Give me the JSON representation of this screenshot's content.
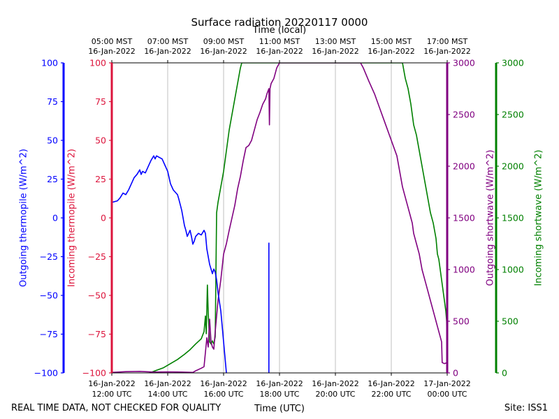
{
  "chart_data": {
    "type": "line",
    "title": "Surface radiation 20220117 0000",
    "top_axis_label": "Time (local)",
    "xlabel": "Time (UTC)",
    "footer_left": "REAL TIME DATA, NOT CHECKED FOR QUALITY",
    "footer_right": "Site: ISS1",
    "x_range_utc_hours": [
      12,
      24
    ],
    "top_ticks": [
      {
        "h": 12,
        "l1": "05:00 MST",
        "l2": "16-Jan-2022"
      },
      {
        "h": 14,
        "l1": "07:00 MST",
        "l2": "16-Jan-2022"
      },
      {
        "h": 16,
        "l1": "09:00 MST",
        "l2": "16-Jan-2022"
      },
      {
        "h": 18,
        "l1": "11:00 MST",
        "l2": "16-Jan-2022"
      },
      {
        "h": 20,
        "l1": "13:00 MST",
        "l2": "16-Jan-2022"
      },
      {
        "h": 22,
        "l1": "15:00 MST",
        "l2": "16-Jan-2022"
      },
      {
        "h": 24,
        "l1": "17:00 MST",
        "l2": "16-Jan-2022"
      }
    ],
    "bottom_ticks": [
      {
        "h": 12,
        "l1": "16-Jan-2022",
        "l2": "12:00 UTC"
      },
      {
        "h": 14,
        "l1": "16-Jan-2022",
        "l2": "14:00 UTC"
      },
      {
        "h": 16,
        "l1": "16-Jan-2022",
        "l2": "16:00 UTC"
      },
      {
        "h": 18,
        "l1": "16-Jan-2022",
        "l2": "18:00 UTC"
      },
      {
        "h": 20,
        "l1": "16-Jan-2022",
        "l2": "20:00 UTC"
      },
      {
        "h": 22,
        "l1": "16-Jan-2022",
        "l2": "22:00 UTC"
      },
      {
        "h": 24,
        "l1": "17-Jan-2022",
        "l2": "00:00 UTC"
      }
    ],
    "axes": [
      {
        "id": "out_thermo",
        "label": "Outgoing thermopile (W/m^2)",
        "color": "#0000ff",
        "range": [
          -100,
          100
        ],
        "ticks": [
          -100,
          -75,
          -50,
          -25,
          0,
          25,
          50,
          75,
          100
        ]
      },
      {
        "id": "in_thermo",
        "label": "Incoming thermopile (W/m^2)",
        "color": "#dc143c",
        "range": [
          -100,
          100
        ],
        "ticks": [
          -100,
          -75,
          -50,
          -25,
          0,
          25,
          50,
          75,
          100
        ]
      },
      {
        "id": "out_sw",
        "label": "Outgoing shortwave (W/m^2)",
        "color": "#800080",
        "range": [
          0,
          3000
        ],
        "ticks": [
          0,
          500,
          1000,
          1500,
          2000,
          2500,
          3000
        ]
      },
      {
        "id": "in_sw",
        "label": "Incoming shortwave (W/m^2)",
        "color": "#008000",
        "range": [
          0,
          3000
        ],
        "ticks": [
          0,
          500,
          1000,
          1500,
          2000,
          2500,
          3000
        ]
      }
    ],
    "series": [
      {
        "id": "incoming-shortwave",
        "axis": "in_sw",
        "color": "#008000",
        "points": [
          [
            13.35,
            0
          ],
          [
            13.6,
            25
          ],
          [
            13.85,
            50
          ],
          [
            14.1,
            90
          ],
          [
            14.35,
            130
          ],
          [
            14.6,
            180
          ],
          [
            14.8,
            225
          ],
          [
            15.0,
            280
          ],
          [
            15.2,
            330
          ],
          [
            15.3,
            400
          ],
          [
            15.35,
            550
          ],
          [
            15.38,
            380
          ],
          [
            15.42,
            850
          ],
          [
            15.45,
            580
          ],
          [
            15.5,
            300
          ],
          [
            15.55,
            280
          ],
          [
            15.6,
            310
          ],
          [
            15.65,
            280
          ],
          [
            15.7,
            350
          ],
          [
            15.75,
            1550
          ],
          [
            15.8,
            1650
          ],
          [
            15.9,
            1800
          ],
          [
            16.0,
            1950
          ],
          [
            16.1,
            2150
          ],
          [
            16.2,
            2350
          ],
          [
            16.3,
            2500
          ],
          [
            16.4,
            2650
          ],
          [
            16.5,
            2800
          ],
          [
            16.6,
            2950
          ],
          [
            16.65,
            3000
          ],
          [
            16.7,
            3000
          ],
          [
            22.4,
            3000
          ],
          [
            22.5,
            2850
          ],
          [
            22.6,
            2750
          ],
          [
            22.7,
            2600
          ],
          [
            22.75,
            2500
          ],
          [
            22.8,
            2400
          ],
          [
            22.9,
            2300
          ],
          [
            23.0,
            2150
          ],
          [
            23.1,
            2000
          ],
          [
            23.2,
            1850
          ],
          [
            23.3,
            1700
          ],
          [
            23.4,
            1550
          ],
          [
            23.5,
            1450
          ],
          [
            23.6,
            1300
          ],
          [
            23.65,
            1150
          ],
          [
            23.7,
            1100
          ],
          [
            23.75,
            1000
          ],
          [
            23.8,
            900
          ],
          [
            23.85,
            800
          ],
          [
            23.9,
            700
          ],
          [
            23.95,
            600
          ],
          [
            23.98,
            500
          ],
          [
            24.0,
            0
          ]
        ]
      },
      {
        "id": "outgoing-shortwave",
        "axis": "out_sw",
        "color": "#800080",
        "points": [
          [
            12.0,
            5
          ],
          [
            12.5,
            12
          ],
          [
            13.0,
            15
          ],
          [
            13.5,
            8
          ],
          [
            14.0,
            10
          ],
          [
            14.5,
            8
          ],
          [
            14.9,
            5
          ],
          [
            15.0,
            20
          ],
          [
            15.2,
            45
          ],
          [
            15.3,
            60
          ],
          [
            15.35,
            200
          ],
          [
            15.4,
            340
          ],
          [
            15.45,
            250
          ],
          [
            15.5,
            520
          ],
          [
            15.55,
            300
          ],
          [
            15.6,
            250
          ],
          [
            15.65,
            230
          ],
          [
            15.7,
            400
          ],
          [
            15.8,
            700
          ],
          [
            15.9,
            900
          ],
          [
            16.0,
            1150
          ],
          [
            16.1,
            1250
          ],
          [
            16.2,
            1380
          ],
          [
            16.3,
            1500
          ],
          [
            16.4,
            1620
          ],
          [
            16.5,
            1780
          ],
          [
            16.6,
            1900
          ],
          [
            16.7,
            2050
          ],
          [
            16.8,
            2180
          ],
          [
            16.9,
            2200
          ],
          [
            17.0,
            2250
          ],
          [
            17.1,
            2350
          ],
          [
            17.2,
            2450
          ],
          [
            17.3,
            2520
          ],
          [
            17.4,
            2600
          ],
          [
            17.5,
            2650
          ],
          [
            17.55,
            2700
          ],
          [
            17.62,
            2750
          ],
          [
            17.64,
            2400
          ],
          [
            17.66,
            2750
          ],
          [
            17.7,
            2800
          ],
          [
            17.8,
            2850
          ],
          [
            17.9,
            2950
          ],
          [
            18.0,
            3000
          ],
          [
            20.9,
            3000
          ],
          [
            21.0,
            2950
          ],
          [
            21.2,
            2820
          ],
          [
            21.4,
            2700
          ],
          [
            21.6,
            2550
          ],
          [
            21.8,
            2400
          ],
          [
            22.0,
            2250
          ],
          [
            22.2,
            2100
          ],
          [
            22.3,
            1950
          ],
          [
            22.4,
            1800
          ],
          [
            22.5,
            1700
          ],
          [
            22.6,
            1600
          ],
          [
            22.7,
            1500
          ],
          [
            22.75,
            1450
          ],
          [
            22.8,
            1350
          ],
          [
            22.85,
            1300
          ],
          [
            22.9,
            1250
          ],
          [
            23.0,
            1150
          ],
          [
            23.1,
            1000
          ],
          [
            23.2,
            900
          ],
          [
            23.3,
            800
          ],
          [
            23.4,
            700
          ],
          [
            23.5,
            600
          ],
          [
            23.55,
            550
          ],
          [
            23.6,
            500
          ],
          [
            23.65,
            450
          ],
          [
            23.7,
            400
          ],
          [
            23.75,
            350
          ],
          [
            23.8,
            300
          ],
          [
            23.82,
            100
          ],
          [
            23.9,
            90
          ],
          [
            24.0,
            100
          ]
        ]
      },
      {
        "id": "outgoing-thermopile",
        "axis": "out_thermo",
        "color": "#0000ff",
        "points": [
          [
            12.0,
            10
          ],
          [
            12.2,
            11
          ],
          [
            12.3,
            13
          ],
          [
            12.4,
            16
          ],
          [
            12.5,
            15
          ],
          [
            12.6,
            18
          ],
          [
            12.7,
            22
          ],
          [
            12.8,
            26
          ],
          [
            12.9,
            28
          ],
          [
            13.0,
            31
          ],
          [
            13.05,
            28
          ],
          [
            13.1,
            30
          ],
          [
            13.2,
            29
          ],
          [
            13.3,
            33
          ],
          [
            13.4,
            37
          ],
          [
            13.5,
            40
          ],
          [
            13.55,
            38
          ],
          [
            13.6,
            40
          ],
          [
            13.7,
            39
          ],
          [
            13.8,
            38
          ],
          [
            13.9,
            34
          ],
          [
            14.0,
            30
          ],
          [
            14.1,
            22
          ],
          [
            14.2,
            18
          ],
          [
            14.3,
            16
          ],
          [
            14.35,
            15
          ],
          [
            14.4,
            12
          ],
          [
            14.5,
            5
          ],
          [
            14.6,
            -5
          ],
          [
            14.65,
            -8
          ],
          [
            14.7,
            -12
          ],
          [
            14.75,
            -10
          ],
          [
            14.8,
            -8
          ],
          [
            14.85,
            -12
          ],
          [
            14.9,
            -17
          ],
          [
            14.95,
            -15
          ],
          [
            15.0,
            -12
          ],
          [
            15.1,
            -10
          ],
          [
            15.2,
            -11
          ],
          [
            15.3,
            -8
          ],
          [
            15.35,
            -10
          ],
          [
            15.4,
            -20
          ],
          [
            15.45,
            -25
          ],
          [
            15.5,
            -30
          ],
          [
            15.6,
            -36
          ],
          [
            15.65,
            -33
          ],
          [
            15.7,
            -35
          ],
          [
            15.75,
            -40
          ],
          [
            15.8,
            -48
          ],
          [
            15.9,
            -60
          ],
          [
            16.0,
            -80
          ],
          [
            16.05,
            -90
          ],
          [
            16.1,
            -100
          ]
        ]
      },
      {
        "id": "outgoing-thermopile-spike",
        "axis": "out_thermo",
        "color": "#0000ff",
        "points": [
          [
            17.62,
            -100
          ],
          [
            17.62,
            -16
          ]
        ]
      }
    ]
  }
}
